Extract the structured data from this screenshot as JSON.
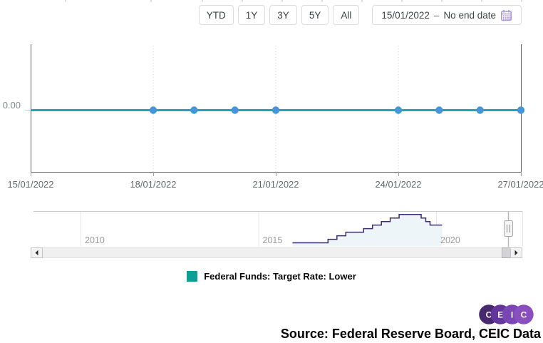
{
  "toolbar": {
    "range_buttons": [
      {
        "label": "YTD"
      },
      {
        "label": "1Y"
      },
      {
        "label": "3Y"
      },
      {
        "label": "5Y"
      },
      {
        "label": "All"
      }
    ],
    "date_range": {
      "start": "15/01/2022",
      "separator": "–",
      "end": "No end date"
    }
  },
  "chart_data": [
    {
      "type": "line",
      "x_ticks": [
        "15/01/2022",
        "18/01/2022",
        "21/01/2022",
        "24/01/2022",
        "27/01/2022"
      ],
      "y_tick_labels": [
        "0.00"
      ],
      "grid": "vertical-dotted",
      "legend_position": "bottom-center",
      "series": [
        {
          "name": "Federal Funds: Target Rate: Lower",
          "color": "#21a5b5",
          "marker_color": "#4496d9",
          "x": [
            "15/01/2022",
            "18/01/2022",
            "19/01/2022",
            "20/01/2022",
            "21/01/2022",
            "24/01/2022",
            "25/01/2022",
            "26/01/2022",
            "27/01/2022"
          ],
          "values": [
            0.0,
            0.0,
            0.0,
            0.0,
            0.0,
            0.0,
            0.0,
            0.0,
            0.0
          ],
          "markers_on": [
            "18/01/2022",
            "19/01/2022",
            "20/01/2022",
            "21/01/2022",
            "24/01/2022",
            "25/01/2022",
            "26/01/2022",
            "27/01/2022"
          ]
        }
      ]
    },
    {
      "type": "area",
      "x_ticks": [
        "2010",
        "2015",
        "2020"
      ],
      "series": [
        {
          "name": "Federal Funds: Target Rate: Lower",
          "color": "#3d2c6d",
          "fill": "#edf5f8",
          "points": [
            [
              2015.96,
              0.25
            ],
            [
              2016.96,
              0.5
            ],
            [
              2017.21,
              0.75
            ],
            [
              2017.46,
              1.0
            ],
            [
              2017.96,
              1.25
            ],
            [
              2018.21,
              1.5
            ],
            [
              2018.46,
              1.75
            ],
            [
              2018.71,
              2.0
            ],
            [
              2018.96,
              2.25
            ],
            [
              2019.58,
              2.0
            ],
            [
              2019.71,
              1.75
            ],
            [
              2019.83,
              1.5
            ],
            [
              2020.17,
              1.5
            ]
          ]
        }
      ]
    }
  ],
  "legend": {
    "swatch_color": "#0d9e95",
    "label": "Federal Funds: Target Rate: Lower"
  },
  "logo": {
    "letters": [
      "C",
      "E",
      "I",
      "C"
    ],
    "colors": [
      "#472a6e",
      "#64369b",
      "#7a46b4",
      "#8a4fbe"
    ]
  },
  "source": {
    "text": "Source: Federal Reserve Board, CEIC Data"
  }
}
